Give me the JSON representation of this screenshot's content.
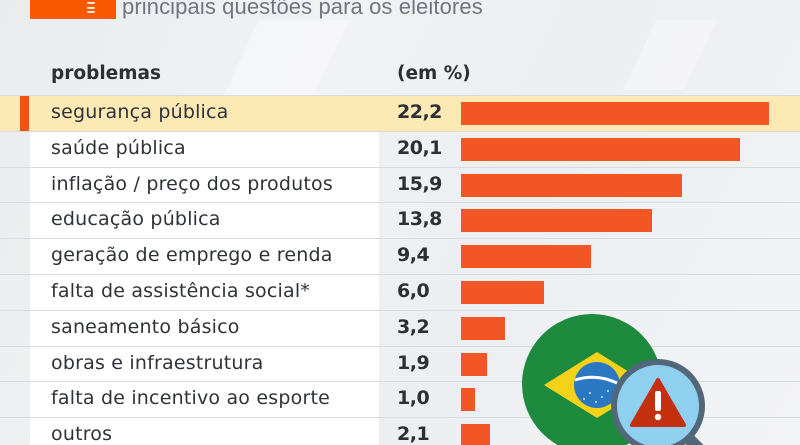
{
  "header": {
    "subtitle": "principais questões para os eleitores"
  },
  "columns": {
    "problems": "problemas",
    "percent": "(em %)"
  },
  "colors": {
    "brand_orange": "#fb5800",
    "bar": "#f15624",
    "highlight_row": "#fde9b4",
    "text": "#2f3238"
  },
  "rows": [
    {
      "label": "segurança pública",
      "value": "22,2",
      "highlight": true
    },
    {
      "label": "saúde pública",
      "value": "20,1"
    },
    {
      "label": "inflação / preço dos produtos",
      "value": "15,9"
    },
    {
      "label": "educação pública",
      "value": "13,8"
    },
    {
      "label": "geração de emprego e renda",
      "value": "9,4"
    },
    {
      "label": "falta de assistência social*",
      "value": "6,0"
    },
    {
      "label": "saneamento básico",
      "value": "3,2"
    },
    {
      "label": "obras e infraestrutura",
      "value": "1,9"
    },
    {
      "label": "falta de incentivo ao esporte",
      "value": "1,0"
    },
    {
      "label": "outros",
      "value": "2,1"
    }
  ],
  "illustration": {
    "icons": [
      "brazil-flag-icon",
      "magnifier-icon",
      "warning-icon"
    ]
  },
  "chart_data": {
    "type": "bar",
    "orientation": "horizontal",
    "title": "principais questões para os eleitores",
    "xlabel": "(em %)",
    "ylabel": "problemas",
    "categories": [
      "segurança pública",
      "saúde pública",
      "inflação / preço dos produtos",
      "educação pública",
      "geração de emprego e renda",
      "falta de assistência social*",
      "saneamento básico",
      "obras e infraestrutura",
      "falta de incentivo ao esporte",
      "outros"
    ],
    "values": [
      22.2,
      20.1,
      15.9,
      13.8,
      9.4,
      6.0,
      3.2,
      1.9,
      1.0,
      2.1
    ],
    "highlighted_category": "segurança pública",
    "grid": false,
    "legend": "none",
    "xlim": [
      0,
      22.2
    ]
  }
}
